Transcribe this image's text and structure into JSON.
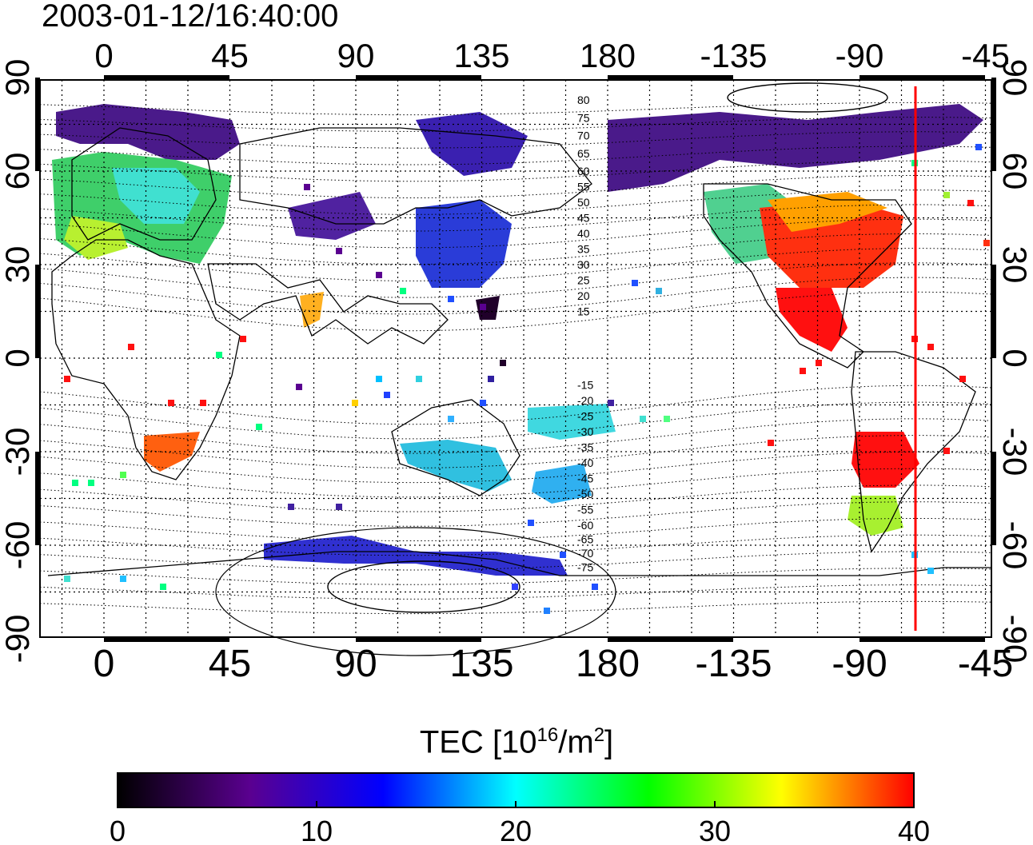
{
  "timestamp": "2003-01-12/16:40:00",
  "top_lon_labels": [
    "0",
    "45",
    "90",
    "135",
    "180",
    "-135",
    "-90",
    "-45"
  ],
  "bottom_lon_labels": [
    "0",
    "45",
    "90",
    "135",
    "180",
    "-135",
    "-90",
    "-45"
  ],
  "lat_labels_left": [
    "90",
    "60",
    "30",
    "0",
    "-30",
    "-60",
    "-90"
  ],
  "lat_labels_right": [
    "90",
    "60",
    "30",
    "0",
    "-30",
    "-60",
    "-90"
  ],
  "contour_labels_north": [
    "80",
    "75",
    "70",
    "65",
    "60",
    "55",
    "50",
    "45",
    "40",
    "35",
    "30",
    "25",
    "20",
    "15"
  ],
  "contour_labels_south": [
    "-15",
    "-20",
    "-25",
    "-30",
    "-35",
    "-40",
    "-45",
    "-50",
    "-55",
    "-60",
    "-65",
    "-70",
    "-75"
  ],
  "colorbar": {
    "title_prefix": "TEC  [10",
    "title_exp": "16",
    "title_mid": "/m",
    "title_exp2": "2",
    "title_suffix": "]",
    "min": 0,
    "max": 40,
    "tick_labels": [
      "0",
      "10",
      "20",
      "30",
      "40"
    ],
    "colors": [
      "#000000",
      "#5a0090",
      "#0000ff",
      "#00ffff",
      "#00ff00",
      "#ffff00",
      "#ff0000"
    ]
  },
  "map": {
    "lon_ticks": [
      0,
      45,
      90,
      135,
      180,
      -135,
      -90,
      -45
    ],
    "lat_ticks": [
      90,
      60,
      30,
      0,
      -30,
      -60,
      -90
    ],
    "marker_longitude": -70,
    "marker_color": "#ff0000"
  }
}
